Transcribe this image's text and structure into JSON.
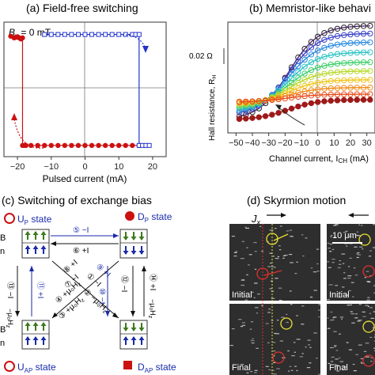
{
  "panels": {
    "a": {
      "title": "(a) Field-free switching",
      "field_label": "B",
      "field_sub": "x",
      "field_value": " = 0 mT",
      "xlabel": "Pulsed current (mA)"
    },
    "b": {
      "title": "(b) Memristor-like behavi",
      "ylabel_main": "Hall resistance, R",
      "ylabel_sub": "H",
      "scale_label": "0.02 Ω",
      "xlabel_main": "Channel current, I",
      "xlabel_sub": "CH",
      "xlabel_unit": " (mA)"
    },
    "c": {
      "title": "(c) Switching of exchange bias",
      "states": {
        "up_p": {
          "name": "U",
          "sub": "P",
          "suffix": " state"
        },
        "d_p": {
          "name": "D",
          "sub": "P",
          "suffix": " state"
        },
        "u_ap": {
          "name": "U",
          "sub": "AP",
          "suffix": " state"
        },
        "d_ap": {
          "name": "D",
          "sub": "AP",
          "suffix": " state"
        }
      },
      "layer_labels": [
        "B",
        "n",
        "B",
        "n"
      ],
      "arrows": {
        "a5": "⑤ −I",
        "a6": "⑥ +I",
        "a8": "⑧ +I",
        "a7": "⑦ −I",
        "a9": "⑨ +I",
        "a1": "① −I",
        "a10": "⑩ −I",
        "a11": "⑪ +I",
        "a13": "⑬ −I",
        "a14": "⑭ +I",
        "a12": "⑫ −I",
        "a4": "④ +μ₀H",
        "a3": "③ +μ₀H",
        "a2": "② −μ₀H",
        "a13h": "−μ₀H",
        "a14h": "−μ₀H",
        "hz_sub": "z"
      }
    },
    "d": {
      "title": "(d) Skyrmion motion",
      "current_label": "J",
      "current_sub": "x",
      "scale_text": "10 μm",
      "initial_label": "Initial",
      "final_label": "Final"
    }
  },
  "chart_data": [
    {
      "type": "scatter",
      "panel": "a",
      "title": "(a) Field-free switching",
      "xlabel": "Pulsed current (mA)",
      "ylabel": "",
      "xlim": [
        -24,
        24
      ],
      "ylim": [
        -1.2,
        1.2
      ],
      "xticks": [
        -20,
        -10,
        0,
        10,
        20
      ],
      "series": [
        {
          "name": "",
          "color": "#cc1111",
          "marker": "circle-filled",
          "x": [
            -22,
            -21,
            -20.5,
            -20,
            -19.5,
            -19,
            -18.5,
            -18.5,
            -18,
            -17.5,
            -16,
            -14,
            -12,
            -10,
            -8,
            -6,
            -4,
            -2,
            0,
            2,
            4,
            6,
            8,
            10,
            12,
            14,
            16
          ],
          "y": [
            0.95,
            0.92,
            0.93,
            0.94,
            0.92,
            0.9,
            0.92,
            -1.0,
            -1.0,
            -1.0,
            -1.0,
            -1.0,
            -1.0,
            -1.0,
            -1.0,
            -1.0,
            -1.0,
            -1.0,
            -1.0,
            -1.0,
            -1.0,
            -1.0,
            -1.0,
            -1.0,
            -1.0,
            -1.0,
            -1.0
          ]
        },
        {
          "name": "",
          "color": "#2233cc",
          "marker": "square-open",
          "x": [
            -12,
            -10,
            -8,
            -6,
            -4,
            -2,
            0,
            2,
            4,
            6,
            8,
            10,
            12,
            14,
            15,
            16,
            16,
            17,
            18,
            19
          ],
          "y": [
            0.98,
            0.98,
            0.98,
            0.98,
            0.98,
            0.98,
            0.98,
            0.98,
            0.98,
            0.98,
            0.98,
            0.98,
            0.98,
            0.98,
            0.98,
            0.98,
            -1.0,
            -1.0,
            -1.0,
            -1.0
          ]
        }
      ]
    },
    {
      "type": "line",
      "panel": "b",
      "title": "(b) Memristor-like behavi",
      "xlabel": "Channel current, I_CH (mA)",
      "ylabel": "Hall resistance, R_H",
      "xlim": [
        -55,
        35
      ],
      "xticks": [
        -50,
        -40,
        -30,
        -20,
        -10,
        0,
        10,
        20,
        30
      ],
      "ylim": [
        0,
        1
      ],
      "series": [
        {
          "name": "",
          "color": "#5a2a7a",
          "top": 0.97,
          "bottom": 0.12
        },
        {
          "name": "",
          "color": "#3c43c8",
          "top": 0.9,
          "bottom": 0.16
        },
        {
          "name": "",
          "color": "#2a8ae0",
          "top": 0.82,
          "bottom": 0.18
        },
        {
          "name": "",
          "color": "#2fc4c4",
          "top": 0.73,
          "bottom": 0.2
        },
        {
          "name": "",
          "color": "#3ecf6a",
          "top": 0.64,
          "bottom": 0.22
        },
        {
          "name": "",
          "color": "#b7d92a",
          "top": 0.56,
          "bottom": 0.24
        },
        {
          "name": "",
          "color": "#f0c419",
          "top": 0.48,
          "bottom": 0.26
        },
        {
          "name": "",
          "color": "#f08a1a",
          "top": 0.41,
          "bottom": 0.27
        },
        {
          "name": "",
          "color": "#e84a1a",
          "top": 0.35,
          "bottom": 0.28
        },
        {
          "name": "",
          "color": "#9e1a1a",
          "top": 0.3,
          "bottom": 0.12
        }
      ]
    }
  ],
  "colors": {
    "red": "#cc1111",
    "blue": "#2233cc",
    "arrow_green": "#3a7a1a",
    "arrow_blue": "#1a2aaa",
    "dark_red": "#9e1a1a"
  }
}
